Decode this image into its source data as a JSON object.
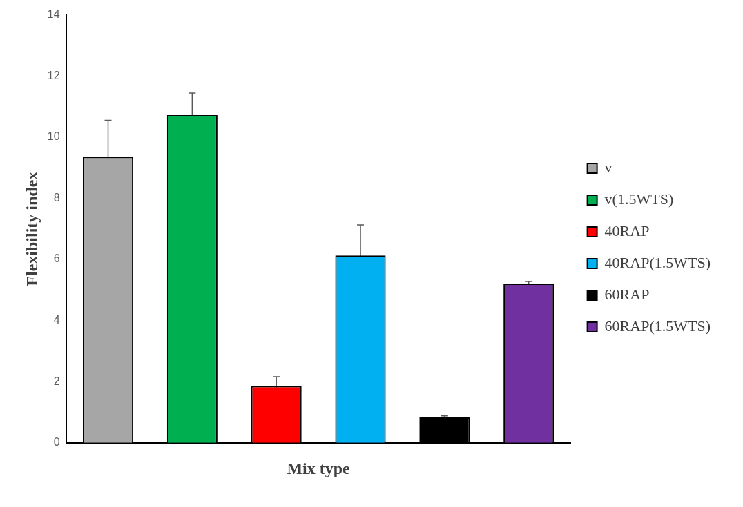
{
  "chart_data": {
    "type": "bar",
    "xlabel": "Mix type",
    "ylabel": "Flexibility index",
    "categories": [
      null,
      null,
      null,
      null,
      null,
      null
    ],
    "series": [
      {
        "name": "v",
        "color": "#a6a6a6",
        "values": [
          9.35,
          null,
          null,
          null,
          null,
          null
        ],
        "errors": [
          1.2,
          null,
          null,
          null,
          null,
          null
        ]
      },
      {
        "name": "v(1.5WTS)",
        "color": "#00b050",
        "values": [
          null,
          10.74,
          null,
          null,
          null,
          null
        ],
        "errors": [
          null,
          0.7,
          null,
          null,
          null,
          null
        ]
      },
      {
        "name": "40RAP",
        "color": "#ff0000",
        "values": [
          null,
          null,
          1.86,
          null,
          null,
          null
        ],
        "errors": [
          null,
          null,
          0.3,
          null,
          null,
          null
        ]
      },
      {
        "name": "40RAP(1.5WTS)",
        "color": "#00b0f0",
        "values": [
          null,
          null,
          null,
          6.13,
          null,
          null
        ],
        "errors": [
          null,
          null,
          null,
          1.0,
          null,
          null
        ]
      },
      {
        "name": "60RAP",
        "color": "#000000",
        "values": [
          null,
          null,
          null,
          null,
          0.83,
          null
        ],
        "errors": [
          null,
          null,
          null,
          null,
          0.05,
          null
        ]
      },
      {
        "name": "60RAP(1.5WTS)",
        "color": "#7030a0",
        "values": [
          null,
          null,
          null,
          null,
          null,
          5.21
        ],
        "errors": [
          null,
          null,
          null,
          null,
          null,
          0.07
        ]
      }
    ],
    "ylim": [
      0,
      14
    ],
    "yticks": [
      0,
      2,
      4,
      6,
      8,
      10,
      12,
      14
    ],
    "grid": false,
    "legend": "right"
  }
}
